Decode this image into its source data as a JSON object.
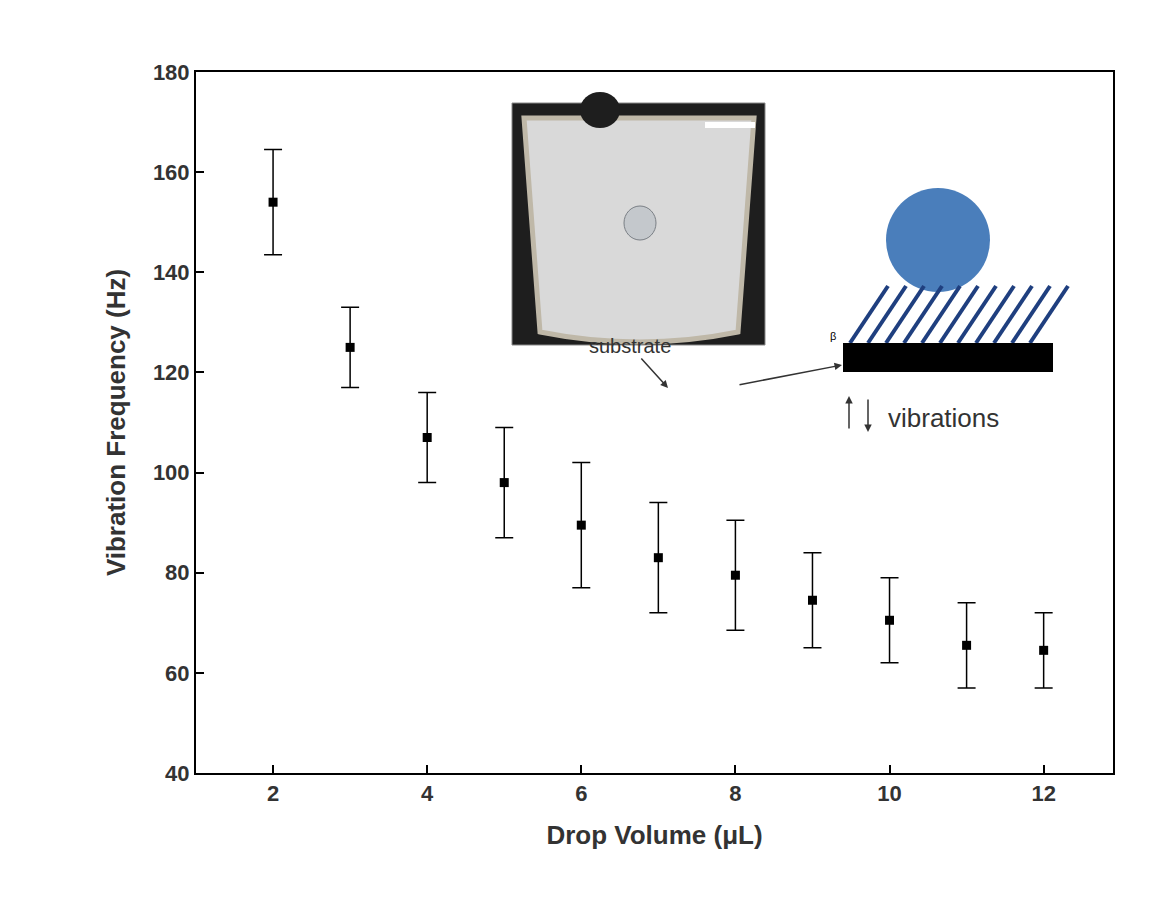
{
  "chart_data": {
    "type": "scatter",
    "x_label": "Drop Volume (μL)",
    "y_label": "Vibration Frequency (Hz)",
    "x": [
      2,
      3,
      4,
      5,
      6,
      7,
      8,
      9,
      10,
      11,
      12
    ],
    "values": [
      154,
      125,
      107,
      98,
      89.5,
      83,
      79.5,
      74.5,
      70.5,
      65.5,
      64.5
    ],
    "errors": [
      10.5,
      8,
      9,
      11,
      12.5,
      11,
      11,
      9.5,
      8.5,
      8.5,
      7.5
    ],
    "color": "#000000",
    "marker": "square",
    "xlim": [
      1,
      12.9
    ],
    "xticks": [
      2,
      4,
      6,
      8,
      10,
      12
    ],
    "ylim": [
      40,
      180
    ],
    "yticks": [
      40,
      60,
      80,
      100,
      120,
      140,
      160,
      180
    ],
    "grid": false,
    "annotations": [
      "substrate",
      "vibrations",
      "β"
    ]
  }
}
